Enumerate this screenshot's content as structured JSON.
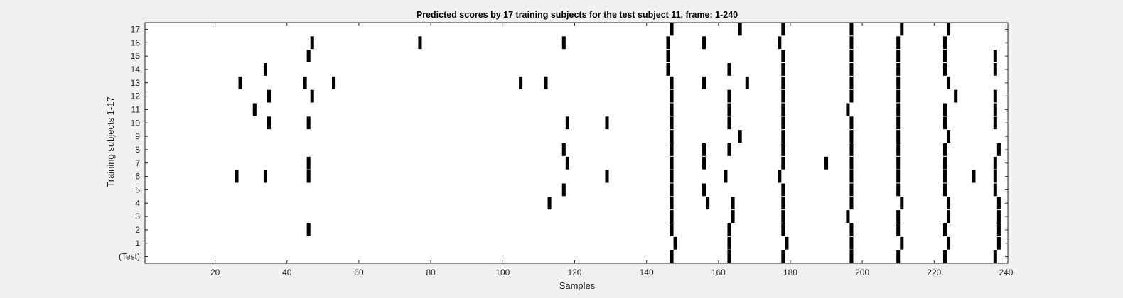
{
  "chart_data": {
    "type": "heatmap",
    "title": "Predicted scores by 17 training subjects for the test subject 11, frame: 1-240",
    "xlabel": "Samples",
    "ylabel": "Training subjects 1-17",
    "xlim": [
      1,
      240
    ],
    "xticks": [
      20,
      40,
      60,
      80,
      100,
      120,
      140,
      160,
      180,
      200,
      220,
      240
    ],
    "row_labels": [
      "17",
      "16",
      "15",
      "14",
      "13",
      "12",
      "11",
      "10",
      "9",
      "8",
      "7",
      "6",
      "5",
      "4",
      "3",
      "2",
      "1",
      "(Test)"
    ],
    "colors": {
      "background": "#f0f0f0",
      "plot": "#ffffff",
      "mark": "#000000",
      "axis": "#262626"
    },
    "grid": false,
    "rows": [
      {
        "label": "17",
        "marks": [
          147,
          166,
          178,
          197,
          211,
          224
        ]
      },
      {
        "label": "16",
        "marks": [
          47,
          77,
          117,
          146,
          156,
          177,
          197,
          210,
          223
        ]
      },
      {
        "label": "15",
        "marks": [
          46,
          146,
          178,
          197,
          210,
          223,
          237
        ]
      },
      {
        "label": "14",
        "marks": [
          34,
          146,
          163,
          178,
          197,
          210,
          223,
          237
        ]
      },
      {
        "label": "13",
        "marks": [
          27,
          45,
          53,
          105,
          112,
          147,
          156,
          168,
          178,
          197,
          210,
          224
        ]
      },
      {
        "label": "12",
        "marks": [
          35,
          47,
          147,
          163,
          178,
          197,
          210,
          226,
          237
        ]
      },
      {
        "label": "11",
        "marks": [
          31,
          147,
          163,
          178,
          196,
          210,
          223,
          237
        ]
      },
      {
        "label": "10",
        "marks": [
          35,
          46,
          118,
          129,
          147,
          163,
          178,
          197,
          210,
          223,
          237
        ]
      },
      {
        "label": "9",
        "marks": [
          147,
          166,
          178,
          197,
          210,
          224
        ]
      },
      {
        "label": "8",
        "marks": [
          117,
          147,
          156,
          163,
          178,
          197,
          210,
          223,
          238
        ]
      },
      {
        "label": "7",
        "marks": [
          46,
          118,
          147,
          156,
          178,
          190,
          197,
          210,
          223,
          237
        ]
      },
      {
        "label": "6",
        "marks": [
          26,
          34,
          46,
          129,
          147,
          162,
          177,
          197,
          210,
          223,
          231,
          237
        ]
      },
      {
        "label": "5",
        "marks": [
          117,
          147,
          156,
          178,
          197,
          210,
          223,
          237
        ]
      },
      {
        "label": "4",
        "marks": [
          113,
          147,
          157,
          164,
          178,
          197,
          211,
          224,
          238
        ]
      },
      {
        "label": "3",
        "marks": [
          147,
          164,
          178,
          196,
          210,
          224,
          238
        ]
      },
      {
        "label": "2",
        "marks": [
          46,
          147,
          163,
          178,
          197,
          210,
          223,
          238
        ]
      },
      {
        "label": "1",
        "marks": [
          148,
          163,
          179,
          197,
          211,
          224,
          238
        ]
      },
      {
        "label": "(Test)",
        "marks": [
          147,
          163,
          178,
          197,
          210,
          223,
          237
        ]
      }
    ]
  }
}
